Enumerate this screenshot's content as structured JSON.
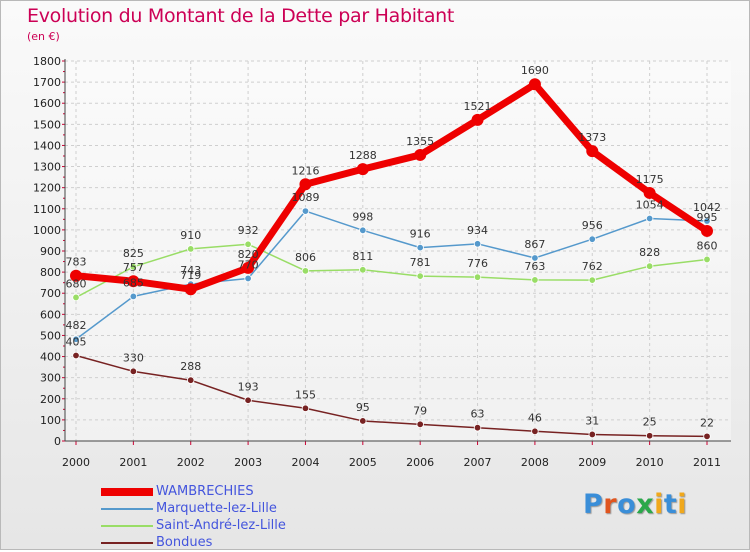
{
  "title": "Evolution du Montant de la Dette par Habitant",
  "unit": "(en €)",
  "brand": {
    "text": "Proxiti",
    "letter_colors": [
      "#3a8ed8",
      "#e0551f",
      "#3a8ed8",
      "#2aa84a",
      "#f0a81c",
      "#3a8ed8",
      "#f0a81c"
    ]
  },
  "chart_data": {
    "type": "line",
    "categories": [
      "2000",
      "2001",
      "2002",
      "2003",
      "2004",
      "2005",
      "2006",
      "2007",
      "2008",
      "2009",
      "2010",
      "2011"
    ],
    "ylim": [
      0,
      1800
    ],
    "yticks": [
      0,
      100,
      200,
      300,
      400,
      500,
      600,
      700,
      800,
      900,
      1000,
      1100,
      1200,
      1300,
      1400,
      1500,
      1600,
      1700,
      1800
    ],
    "grid": true,
    "legend_position": "bottom-left",
    "series": [
      {
        "name": "WAMBRECHIES",
        "color": "#ee0000",
        "values": [
          783,
          757,
          719,
          820,
          1216,
          1288,
          1355,
          1521,
          1690,
          1373,
          1175,
          995
        ]
      },
      {
        "name": "Marquette-lez-Lille",
        "color": "#5599cc",
        "values": [
          482,
          685,
          743,
          770,
          1089,
          998,
          916,
          934,
          867,
          956,
          1054,
          1042
        ]
      },
      {
        "name": "Saint-André-lez-Lille",
        "color": "#99dd66",
        "values": [
          680,
          825,
          910,
          932,
          806,
          811,
          781,
          776,
          763,
          762,
          828,
          860
        ]
      },
      {
        "name": "Bondues",
        "color": "#772222",
        "values": [
          405,
          330,
          288,
          193,
          155,
          95,
          79,
          63,
          46,
          31,
          25,
          22
        ]
      }
    ],
    "data_labels": [
      [
        "783",
        "757",
        "719",
        "820",
        "1216",
        "1288",
        "1355",
        "1521",
        "1690",
        "1373",
        "1175",
        "995"
      ],
      [
        "482",
        "685",
        "743",
        "770",
        "1089",
        "998",
        "916",
        "934",
        "867",
        "956",
        "1054",
        "1042"
      ],
      [
        "680",
        "825",
        "910",
        "932",
        "806",
        "811",
        "781",
        "776",
        "763",
        "762",
        "828",
        "860"
      ],
      [
        "405",
        "330",
        "288",
        "193",
        "155",
        "95",
        "79",
        "63",
        "46",
        "31",
        "25",
        "22"
      ]
    ]
  }
}
